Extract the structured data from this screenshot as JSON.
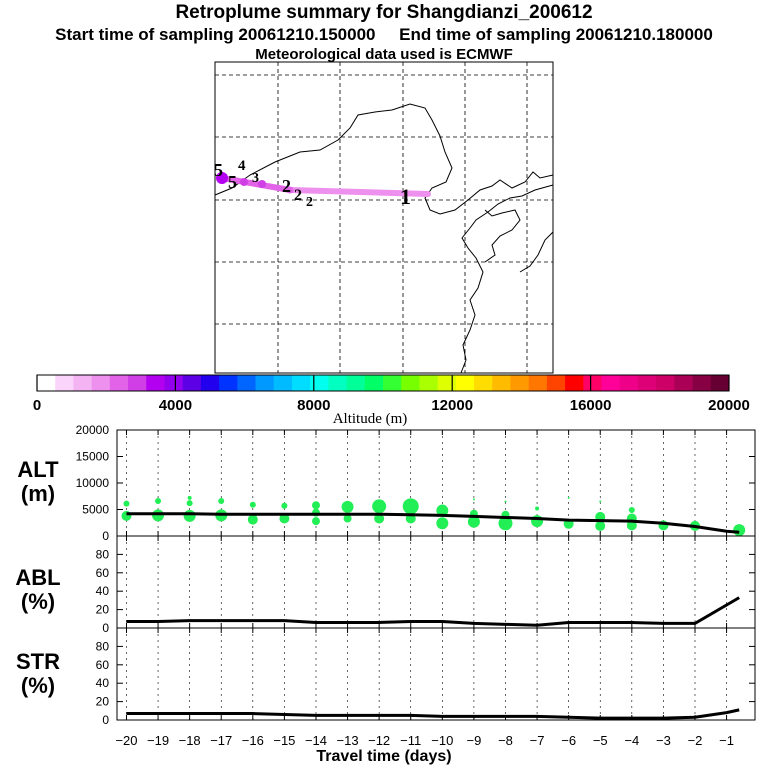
{
  "header": {
    "title": "Retroplume summary for Shangdianzi_200612",
    "sampling_line": "Start time of sampling 20061210.150000     End time of sampling 20061210.180000",
    "met_line": "Meteorological data used is ECMWF"
  },
  "chart_data": [
    {
      "type": "map",
      "name": "retroplume-map",
      "trajectory_labels": [
        "5",
        "5",
        "4",
        "3",
        "2",
        "2",
        "2",
        "1"
      ],
      "colorbar": {
        "label": "Altitude (m)",
        "range": [
          0,
          20000
        ],
        "ticks": [
          0,
          4000,
          8000,
          12000,
          16000,
          20000
        ],
        "colors": [
          "#ffffff",
          "#fbd4fb",
          "#f4b3f3",
          "#ed90ee",
          "#e263e8",
          "#d03fe6",
          "#b400f0",
          "#9300ee",
          "#5d00e5",
          "#2200ee",
          "#0033ff",
          "#0066ff",
          "#0099ff",
          "#00bbff",
          "#00ddff",
          "#00ffee",
          "#00ffc0",
          "#00ff99",
          "#00ff66",
          "#33ff33",
          "#77ff00",
          "#aaff00",
          "#ddff00",
          "#ffff00",
          "#ffdd00",
          "#ffbb00",
          "#ff9900",
          "#ff7700",
          "#ff4400",
          "#ff0000",
          "#ff0066",
          "#ff0099",
          "#ee0088",
          "#dd0077",
          "#cc0066",
          "#aa0055",
          "#880044",
          "#660033"
        ]
      }
    },
    {
      "type": "scatter+line",
      "name": "altitude-panel",
      "ylabel": "ALT\n(m)",
      "ylim": [
        0,
        20000
      ],
      "yticks": [
        0,
        5000,
        10000,
        15000,
        20000
      ],
      "line_x": [
        -20,
        -19,
        -18,
        -17,
        -16,
        -15,
        -14,
        -13,
        -12,
        -11,
        -10,
        -9,
        -8,
        -7,
        -6,
        -5,
        -4,
        -3,
        -2,
        -1,
        -0.6
      ],
      "line_y": [
        4200,
        4200,
        4200,
        4100,
        4100,
        4100,
        4100,
        4100,
        4100,
        4000,
        3900,
        3700,
        3500,
        3300,
        3000,
        2900,
        2800,
        2400,
        1800,
        900,
        700
      ],
      "points": [
        {
          "x": -20,
          "y": 3800,
          "s": 5
        },
        {
          "x": -20,
          "y": 6100,
          "s": 3
        },
        {
          "x": -19,
          "y": 3900,
          "s": 6
        },
        {
          "x": -19,
          "y": 6600,
          "s": 3
        },
        {
          "x": -18,
          "y": 3800,
          "s": 6
        },
        {
          "x": -18,
          "y": 6200,
          "s": 3
        },
        {
          "x": -18,
          "y": 7200,
          "s": 2
        },
        {
          "x": -17,
          "y": 3900,
          "s": 6
        },
        {
          "x": -17,
          "y": 6600,
          "s": 3
        },
        {
          "x": -16,
          "y": 3100,
          "s": 5
        },
        {
          "x": -16,
          "y": 5900,
          "s": 3
        },
        {
          "x": -15,
          "y": 3300,
          "s": 5
        },
        {
          "x": -15,
          "y": 5700,
          "s": 3
        },
        {
          "x": -14,
          "y": 2800,
          "s": 4
        },
        {
          "x": -14,
          "y": 4400,
          "s": 4
        },
        {
          "x": -14,
          "y": 5800,
          "s": 4
        },
        {
          "x": -13,
          "y": 3300,
          "s": 4
        },
        {
          "x": -13,
          "y": 5500,
          "s": 6
        },
        {
          "x": -12,
          "y": 3300,
          "s": 5
        },
        {
          "x": -12,
          "y": 5600,
          "s": 7
        },
        {
          "x": -11,
          "y": 3300,
          "s": 5
        },
        {
          "x": -11,
          "y": 5600,
          "s": 8
        },
        {
          "x": -10,
          "y": 2400,
          "s": 6
        },
        {
          "x": -10,
          "y": 4800,
          "s": 6
        },
        {
          "x": -9,
          "y": 2700,
          "s": 6
        },
        {
          "x": -9,
          "y": 4200,
          "s": 4
        },
        {
          "x": -9,
          "y": 6900,
          "s": 1
        },
        {
          "x": -8,
          "y": 2400,
          "s": 7
        },
        {
          "x": -8,
          "y": 4000,
          "s": 4
        },
        {
          "x": -8,
          "y": 6500,
          "s": 1
        },
        {
          "x": -7,
          "y": 2800,
          "s": 6
        },
        {
          "x": -7,
          "y": 5200,
          "s": 2
        },
        {
          "x": -6,
          "y": 2300,
          "s": 5
        },
        {
          "x": -6,
          "y": 7200,
          "s": 1
        },
        {
          "x": -5,
          "y": 1900,
          "s": 5
        },
        {
          "x": -5,
          "y": 3600,
          "s": 5
        },
        {
          "x": -5,
          "y": 6500,
          "s": 1
        },
        {
          "x": -4,
          "y": 2000,
          "s": 5
        },
        {
          "x": -4,
          "y": 3300,
          "s": 5
        },
        {
          "x": -4,
          "y": 4900,
          "s": 3
        },
        {
          "x": -3,
          "y": 2000,
          "s": 5
        },
        {
          "x": -2,
          "y": 1900,
          "s": 5
        },
        {
          "x": -0.6,
          "y": 1100,
          "s": 6
        }
      ]
    },
    {
      "type": "line",
      "name": "abl-panel",
      "ylabel": "ABL\n(%)",
      "ylim": [
        0,
        100
      ],
      "yticks": [
        0,
        20,
        40,
        60,
        80
      ],
      "x": [
        -20,
        -19,
        -18,
        -17,
        -16,
        -15,
        -14,
        -13,
        -12,
        -11,
        -10,
        -9,
        -8,
        -7,
        -6,
        -5,
        -4,
        -3,
        -2,
        -1,
        -0.6
      ],
      "y": [
        7,
        7,
        8,
        8,
        8,
        8,
        6,
        6,
        6,
        7,
        7,
        5,
        4,
        3,
        6,
        6,
        6,
        5,
        5,
        25,
        33
      ]
    },
    {
      "type": "line",
      "name": "str-panel",
      "ylabel": "STR\n(%)",
      "ylim": [
        0,
        100
      ],
      "yticks": [
        0,
        20,
        40,
        60,
        80
      ],
      "x": [
        -20,
        -19,
        -18,
        -17,
        -16,
        -15,
        -14,
        -13,
        -12,
        -11,
        -10,
        -9,
        -8,
        -7,
        -6,
        -5,
        -4,
        -3,
        -2,
        -1,
        -0.6
      ],
      "y": [
        7,
        7,
        7,
        7,
        7,
        6,
        5,
        5,
        5,
        5,
        4,
        4,
        4,
        4,
        3,
        2,
        2,
        2,
        3,
        8,
        11
      ]
    }
  ],
  "xaxis": {
    "label": "Travel time (days)",
    "ticks": [
      -20,
      -19,
      -18,
      -17,
      -16,
      -15,
      -14,
      -13,
      -12,
      -11,
      -10,
      -9,
      -8,
      -7,
      -6,
      -5,
      -4,
      -3,
      -2,
      -1
    ],
    "xlim": [
      -20.3,
      -0.1
    ]
  }
}
